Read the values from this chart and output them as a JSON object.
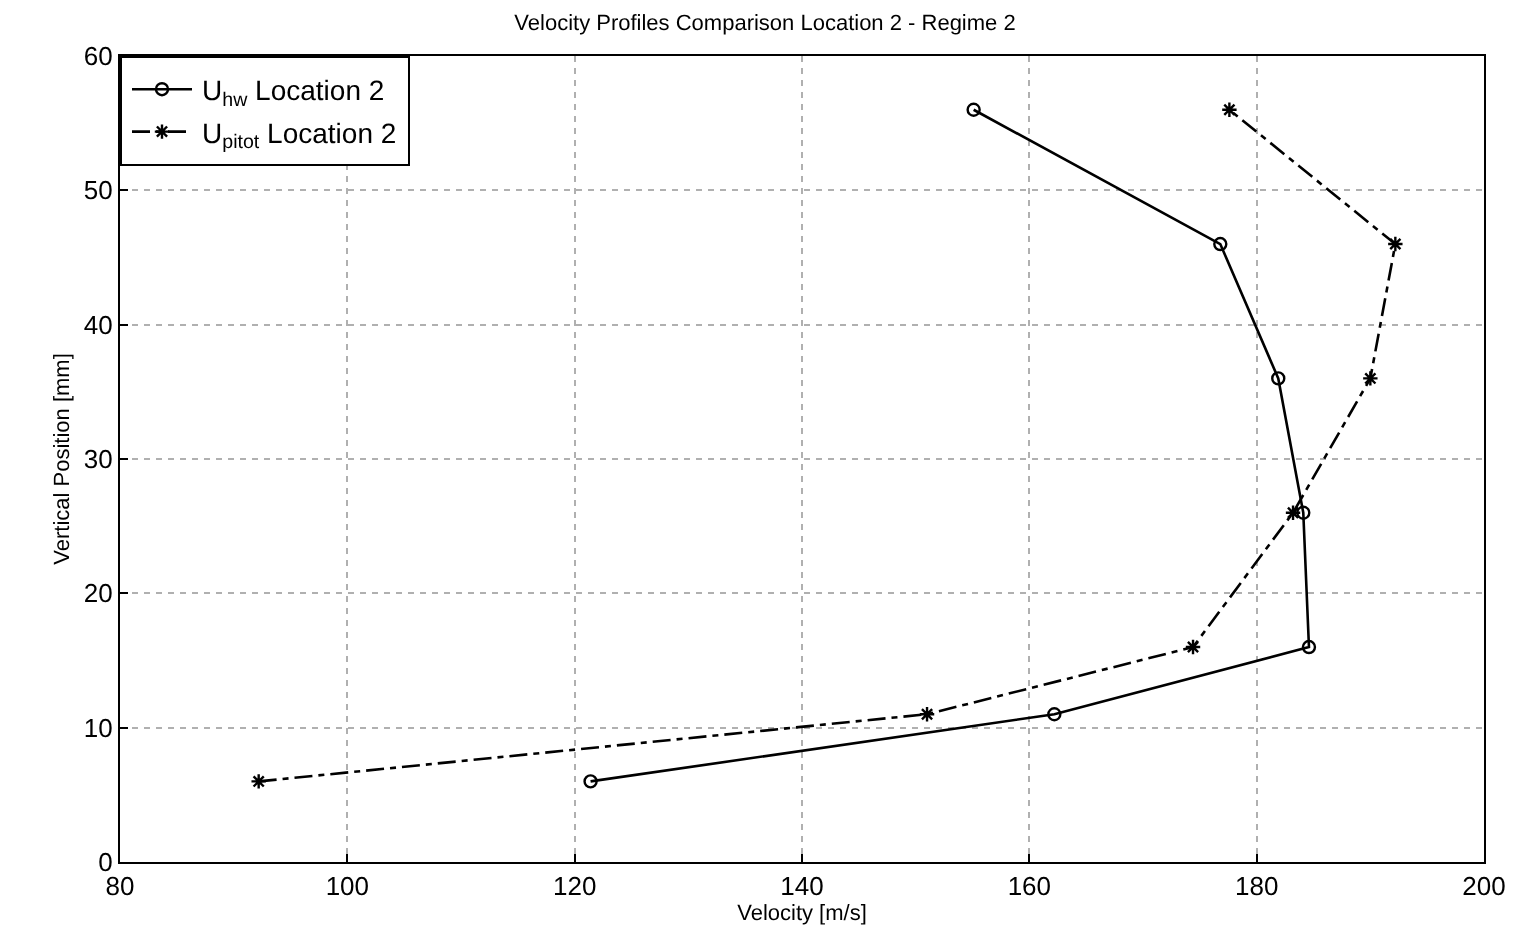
{
  "chart_data": {
    "type": "line",
    "title": "Velocity Profiles Comparison Location 2 - Regime 2",
    "xlabel": "Velocity [m/s]",
    "ylabel": "Vertical Position [mm]",
    "xlim": [
      80,
      200
    ],
    "xticks": [
      80,
      100,
      120,
      140,
      160,
      180,
      200
    ],
    "ylim": [
      0,
      60
    ],
    "yticks": [
      0,
      10,
      20,
      30,
      40,
      50,
      60
    ],
    "grid": true,
    "legend": "top left",
    "series": [
      {
        "name": "U$_{hw}$ Location 2",
        "color": "#000000",
        "marker": "circle",
        "line_style": "solid",
        "x": [
          121.4,
          162.2,
          184.6,
          184.1,
          181.9,
          176.8,
          155.1
        ],
        "values": [
          6,
          11,
          16,
          26,
          36,
          46,
          56
        ]
      },
      {
        "name": "U$_{pitot}$ Location 2",
        "color": "#000000",
        "marker": "cross",
        "line_style": "dashdot",
        "x": [
          92.2,
          151.0,
          174.4,
          183.2,
          190.0,
          192.2,
          177.6
        ],
        "values": [
          6,
          11,
          16,
          26,
          36,
          46,
          56
        ]
      }
    ]
  }
}
